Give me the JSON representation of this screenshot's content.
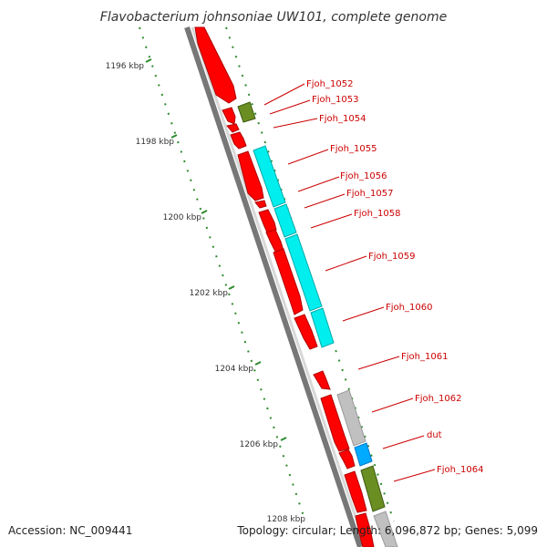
{
  "title": "Flavobacterium johnsoniae UW101, complete genome",
  "accession": "Accession: NC_009441",
  "summary": "Topology: circular; Length: 6,096,872 bp; Genes: 5,099",
  "colors": {
    "backbone": "#8c8c8c",
    "cds_forward": "#ff0000",
    "cds_reverse_cyan": "#00eeee",
    "cds_olive": "#6b8e23",
    "cds_grey": "#c0c0c0",
    "cds_blue": "#00aaff",
    "tick": "#2e8b2e",
    "label": "#cc0000"
  },
  "scale_labels": [
    "1196 kbp",
    "1198 kbp",
    "1200 kbp",
    "1202 kbp",
    "1204 kbp",
    "1206 kbp",
    "1208 kbp"
  ],
  "gene_labels": [
    "Fjoh_1052",
    "Fjoh_1053",
    "Fjoh_1054",
    "Fjoh_1055",
    "Fjoh_1056",
    "Fjoh_1057",
    "Fjoh_1058",
    "Fjoh_1059",
    "Fjoh_1060",
    "Fjoh_1061",
    "Fjoh_1062",
    "dut",
    "Fjoh_1064"
  ]
}
